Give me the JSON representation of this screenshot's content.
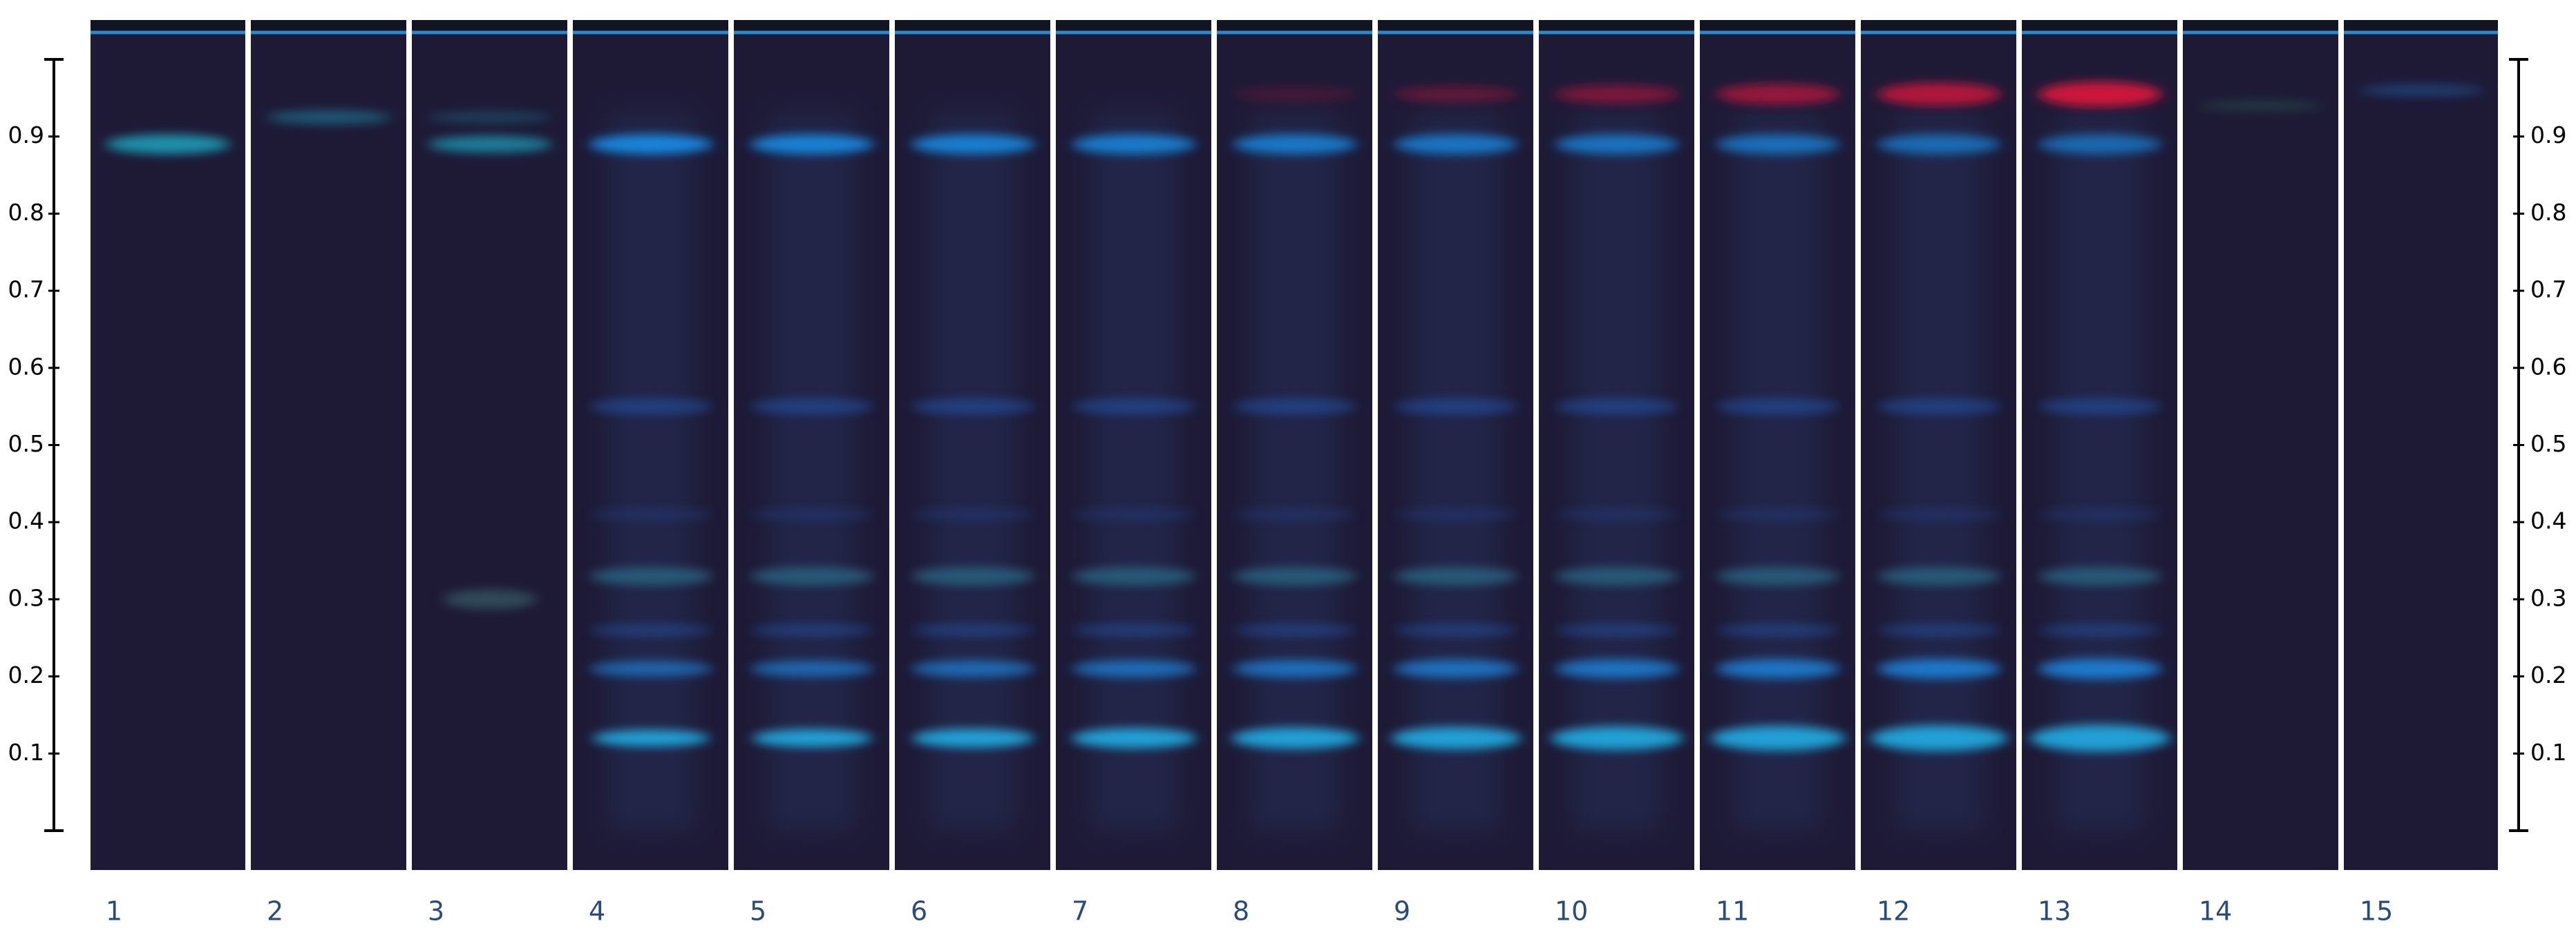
{
  "scale": {
    "labels": [
      "0.1",
      "0.2",
      "0.3",
      "0.4",
      "0.5",
      "0.6",
      "0.7",
      "0.8",
      "0.9"
    ]
  },
  "lanes": [
    "1",
    "2",
    "3",
    "4",
    "5",
    "6",
    "7",
    "8",
    "9",
    "10",
    "11",
    "12",
    "13",
    "14",
    "15"
  ]
}
